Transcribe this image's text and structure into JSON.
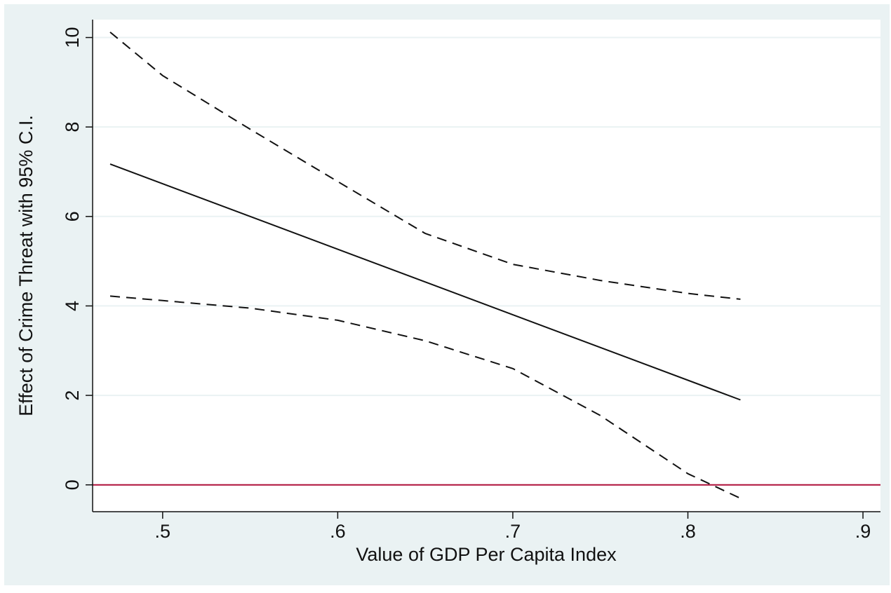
{
  "chart_data": {
    "type": "line",
    "title": "",
    "xlabel": "Value of GDP Per Capita Index",
    "ylabel": "Effect of Crime Threat with 95% C.I.",
    "xlim": [
      0.46,
      0.91
    ],
    "ylim": [
      -0.6,
      10.4
    ],
    "x_ticks": [
      {
        "value": 0.5,
        "label": ".5"
      },
      {
        "value": 0.6,
        "label": ".6"
      },
      {
        "value": 0.7,
        "label": ".7"
      },
      {
        "value": 0.8,
        "label": ".8"
      },
      {
        "value": 0.9,
        "label": ".9"
      }
    ],
    "y_ticks": [
      {
        "value": 0,
        "label": "0"
      },
      {
        "value": 2,
        "label": "2"
      },
      {
        "value": 4,
        "label": "4"
      },
      {
        "value": 6,
        "label": "6"
      },
      {
        "value": 8,
        "label": "8"
      },
      {
        "value": 10,
        "label": "10"
      }
    ],
    "grid": "horizontal",
    "reference_line": {
      "y": 0,
      "color": "#b0103a"
    },
    "series": [
      {
        "style": "solid",
        "color": "#111111",
        "x": [
          0.47,
          0.83
        ],
        "y": [
          7.17,
          1.9
        ]
      },
      {
        "style": "dashed",
        "color": "#111111",
        "x": [
          0.47,
          0.5,
          0.55,
          0.6,
          0.65,
          0.7,
          0.75,
          0.8,
          0.83
        ],
        "y": [
          10.12,
          9.15,
          7.95,
          6.78,
          5.62,
          4.93,
          4.57,
          4.28,
          4.15
        ]
      },
      {
        "style": "dashed",
        "color": "#111111",
        "x": [
          0.47,
          0.5,
          0.55,
          0.6,
          0.65,
          0.7,
          0.75,
          0.8,
          0.83
        ],
        "y": [
          4.22,
          4.12,
          3.95,
          3.68,
          3.22,
          2.6,
          1.55,
          0.25,
          -0.3
        ]
      }
    ],
    "colors": {
      "background": "#eaf2f3",
      "plot_area": "#ffffff",
      "gridline": "#eaf2f3"
    }
  }
}
